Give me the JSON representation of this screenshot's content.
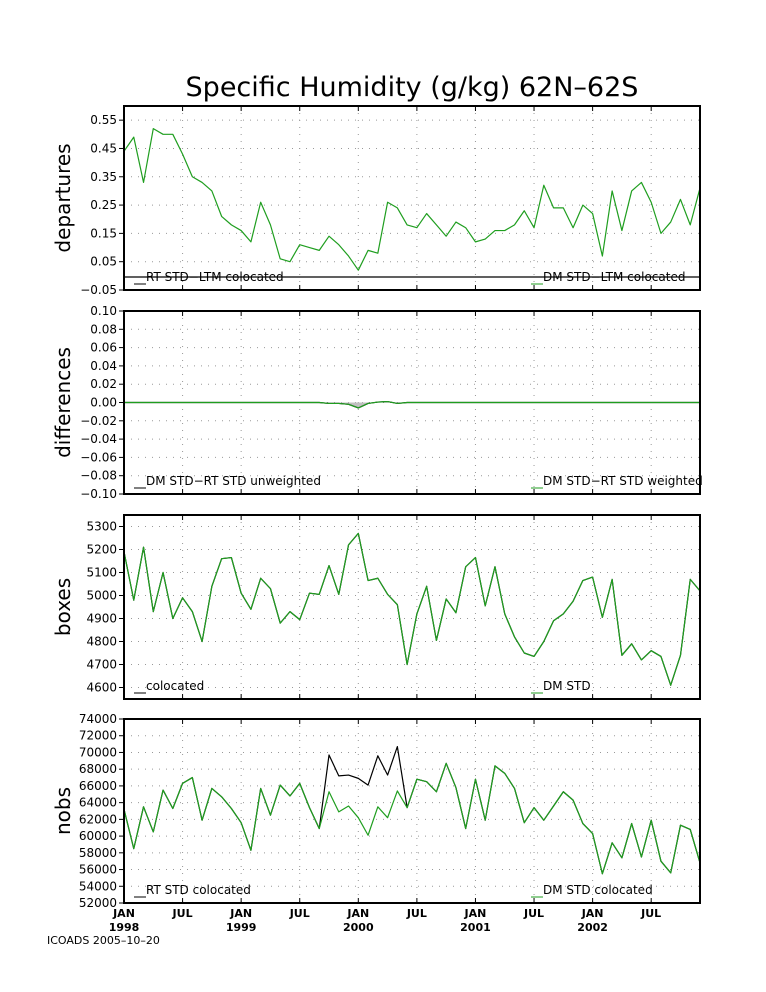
{
  "title": "Specific Humidity (g/kg) 62N–62S",
  "footer": "ICOADS 2005–10–20",
  "x_axis": {
    "ticks": [
      {
        "month": 0,
        "label": "JAN",
        "year": "1998"
      },
      {
        "month": 6,
        "label": "JUL",
        "year": ""
      },
      {
        "month": 12,
        "label": "JAN",
        "year": "1999"
      },
      {
        "month": 18,
        "label": "JUL",
        "year": ""
      },
      {
        "month": 24,
        "label": "JAN",
        "year": "2000"
      },
      {
        "month": 30,
        "label": "JUL",
        "year": ""
      },
      {
        "month": 36,
        "label": "JAN",
        "year": "2001"
      },
      {
        "month": 42,
        "label": "JUL",
        "year": ""
      },
      {
        "month": 48,
        "label": "JAN",
        "year": "2002"
      },
      {
        "month": 54,
        "label": "JUL",
        "year": ""
      }
    ],
    "range_months": [
      0,
      59
    ]
  },
  "colors": {
    "black_series": "#000000",
    "green_series": "#1f9e1f",
    "grid": "#999999"
  },
  "chart_data": [
    {
      "type": "line",
      "ylabel": "departures",
      "ylim": [
        -0.05,
        0.6
      ],
      "yticks": [
        -0.05,
        0.05,
        0.15,
        0.25,
        0.35,
        0.45,
        0.55
      ],
      "ytick_labels": [
        "−0.05",
        "0.05",
        "0.15",
        "0.25",
        "0.35",
        "0.45",
        "0.55"
      ],
      "grid": true,
      "legend": [
        {
          "series": 0,
          "label": "RT STD−LTM colocated",
          "placement": "bottom-left"
        },
        {
          "series": 1,
          "label": "DM STD−LTM colocated",
          "placement": "bottom-right"
        }
      ],
      "series": [
        {
          "color": "black",
          "values": [
            -0.004,
            -0.004,
            -0.004,
            -0.004,
            -0.004,
            -0.004,
            -0.004,
            -0.004,
            -0.004,
            -0.004,
            -0.004,
            -0.004,
            -0.004,
            -0.004,
            -0.004,
            -0.004,
            -0.004,
            -0.004,
            -0.004,
            -0.004,
            -0.004,
            -0.004,
            -0.004,
            -0.004,
            -0.004,
            -0.004,
            -0.004,
            -0.004,
            -0.004,
            -0.004,
            -0.004,
            -0.004,
            -0.004,
            -0.004,
            -0.004,
            -0.004,
            -0.004,
            -0.004,
            -0.004,
            -0.004,
            -0.004,
            -0.004,
            -0.004,
            -0.004,
            -0.004,
            -0.004,
            -0.004,
            -0.004,
            -0.004,
            -0.004,
            -0.004,
            -0.004,
            -0.004,
            -0.004,
            -0.004,
            -0.004,
            -0.004,
            -0.004,
            -0.004,
            -0.004
          ]
        },
        {
          "color": "green",
          "values": [
            0.44,
            0.49,
            0.33,
            0.52,
            0.5,
            0.5,
            0.43,
            0.35,
            0.33,
            0.3,
            0.21,
            0.18,
            0.16,
            0.12,
            0.26,
            0.18,
            0.06,
            0.05,
            0.11,
            0.1,
            0.09,
            0.14,
            0.11,
            0.07,
            0.02,
            0.09,
            0.08,
            0.26,
            0.24,
            0.18,
            0.17,
            0.22,
            0.18,
            0.14,
            0.19,
            0.17,
            0.12,
            0.13,
            0.16,
            0.16,
            0.18,
            0.23,
            0.17,
            0.32,
            0.24,
            0.24,
            0.17,
            0.25,
            0.22,
            0.07,
            0.3,
            0.16,
            0.3,
            0.33,
            0.26,
            0.15,
            0.19,
            0.27,
            0.18,
            0.31
          ]
        }
      ]
    },
    {
      "type": "area",
      "ylabel": "differences",
      "ylim": [
        -0.1,
        0.1
      ],
      "yticks": [
        -0.1,
        -0.08,
        -0.06,
        -0.04,
        -0.02,
        0.0,
        0.02,
        0.04,
        0.06,
        0.08,
        0.1
      ],
      "ytick_labels": [
        "−0.10",
        "−0.08",
        "−0.06",
        "−0.04",
        "−0.02",
        "0.00",
        "0.02",
        "0.04",
        "0.06",
        "0.08",
        "0.10"
      ],
      "grid": true,
      "legend": [
        {
          "series": 0,
          "label": "DM STD−RT STD unweighted",
          "placement": "bottom-left"
        },
        {
          "series": 1,
          "label": "DM STD−RT STD weighted",
          "placement": "bottom-right"
        }
      ],
      "series": [
        {
          "color": "black",
          "values": [
            0,
            0,
            0,
            0,
            0,
            0,
            0,
            0,
            0,
            0,
            0,
            0,
            0,
            0,
            0,
            0,
            0,
            0,
            0,
            0,
            0,
            -0.001,
            -0.001,
            -0.002,
            -0.006,
            -0.001,
            0.0005,
            0.001,
            -0.001,
            0,
            0,
            0,
            0,
            0,
            0,
            0,
            0,
            0,
            0,
            0,
            0,
            0,
            0,
            0,
            0,
            0,
            0,
            0,
            0,
            0,
            0,
            0,
            0,
            0,
            0,
            0,
            0,
            0,
            0,
            0
          ]
        },
        {
          "color": "green",
          "values": [
            0,
            0,
            0,
            0,
            0,
            0,
            0,
            0,
            0,
            0,
            0,
            0,
            0,
            0,
            0,
            0,
            0,
            0,
            0,
            0,
            0,
            -0.001,
            -0.001,
            -0.002,
            -0.006,
            -0.001,
            0.0005,
            0.001,
            -0.001,
            0,
            0,
            0,
            0,
            0,
            0,
            0,
            0,
            0,
            0,
            0,
            0,
            0,
            0,
            0,
            0,
            0,
            0,
            0,
            0,
            0,
            0,
            0,
            0,
            0,
            0,
            0,
            0,
            0,
            0,
            0
          ]
        }
      ]
    },
    {
      "type": "line",
      "ylabel": "boxes",
      "ylim": [
        4550,
        5350
      ],
      "yticks": [
        4600,
        4700,
        4800,
        4900,
        5000,
        5100,
        5200,
        5300
      ],
      "ytick_labels": [
        "4600",
        "4700",
        "4800",
        "4900",
        "5000",
        "5100",
        "5200",
        "5300"
      ],
      "grid": true,
      "legend": [
        {
          "series": 0,
          "label": "colocated",
          "placement": "bottom-left"
        },
        {
          "series": 1,
          "label": "DM STD",
          "placement": "bottom-right"
        }
      ],
      "series": [
        {
          "color": "black",
          "values": [
            5190,
            4980,
            5210,
            4930,
            5100,
            4900,
            4990,
            4930,
            4800,
            5040,
            5160,
            5165,
            5010,
            4940,
            5075,
            5030,
            4880,
            4930,
            4895,
            5010,
            5005,
            5130,
            5005,
            5220,
            5270,
            5065,
            5075,
            5005,
            4960,
            4700,
            4920,
            5040,
            4805,
            4985,
            4925,
            5125,
            5165,
            4955,
            5125,
            4920,
            4820,
            4750,
            4735,
            4800,
            4890,
            4920,
            4975,
            5065,
            5080,
            4905,
            5070,
            4740,
            4790,
            4720,
            4760,
            4735,
            4610,
            4740,
            5070,
            5020
          ]
        },
        {
          "color": "green",
          "values": [
            5190,
            4980,
            5210,
            4930,
            5100,
            4900,
            4990,
            4930,
            4800,
            5040,
            5160,
            5165,
            5010,
            4940,
            5075,
            5030,
            4880,
            4930,
            4895,
            5010,
            5005,
            5130,
            5005,
            5220,
            5270,
            5065,
            5075,
            5005,
            4960,
            4700,
            4920,
            5040,
            4805,
            4985,
            4925,
            5125,
            5165,
            4955,
            5125,
            4920,
            4820,
            4750,
            4735,
            4800,
            4890,
            4920,
            4975,
            5065,
            5080,
            4905,
            5070,
            4740,
            4790,
            4720,
            4760,
            4735,
            4610,
            4740,
            5070,
            5020
          ]
        }
      ]
    },
    {
      "type": "line",
      "ylabel": "nobs",
      "ylim": [
        52000,
        74000
      ],
      "yticks": [
        52000,
        54000,
        56000,
        58000,
        60000,
        62000,
        64000,
        66000,
        68000,
        70000,
        72000,
        74000
      ],
      "ytick_labels": [
        "52000",
        "54000",
        "56000",
        "58000",
        "60000",
        "62000",
        "64000",
        "66000",
        "68000",
        "70000",
        "72000",
        "74000"
      ],
      "grid": true,
      "legend": [
        {
          "series": 0,
          "label": "RT STD colocated",
          "placement": "bottom-left"
        },
        {
          "series": 1,
          "label": "DM STD colocated",
          "placement": "bottom-right"
        }
      ],
      "series": [
        {
          "color": "black",
          "values": [
            63200,
            58500,
            63500,
            60500,
            65500,
            63300,
            66300,
            67000,
            61900,
            65700,
            64700,
            63300,
            61600,
            58300,
            65700,
            62500,
            66100,
            64800,
            66300,
            63400,
            60900,
            69700,
            67200,
            67300,
            66900,
            66100,
            69600,
            67300,
            70700,
            63400,
            66800,
            66500,
            65300,
            68700,
            65800,
            60900,
            66800,
            61900,
            68400,
            67500,
            65700,
            61600,
            63400,
            61900,
            63600,
            65300,
            64300,
            61500,
            60300,
            55500,
            59200,
            57400,
            61500,
            57500,
            61900,
            57000,
            55600,
            61300,
            60800,
            56800
          ]
        },
        {
          "color": "green",
          "values": [
            63200,
            58500,
            63500,
            60500,
            65500,
            63300,
            66300,
            67000,
            61900,
            65700,
            64700,
            63300,
            61600,
            58300,
            65700,
            62500,
            66100,
            64800,
            66300,
            63400,
            60900,
            65300,
            62900,
            63600,
            62200,
            60100,
            63500,
            62200,
            65400,
            63400,
            66800,
            66500,
            65300,
            68700,
            65800,
            60900,
            66800,
            61900,
            68400,
            67500,
            65700,
            61600,
            63400,
            61900,
            63600,
            65300,
            64300,
            61500,
            60300,
            55500,
            59200,
            57400,
            61500,
            57500,
            61900,
            57000,
            55600,
            61300,
            60800,
            56800
          ]
        }
      ]
    }
  ]
}
